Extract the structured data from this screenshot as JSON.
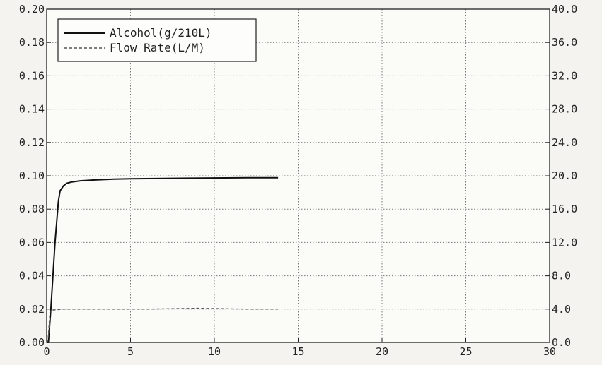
{
  "chart_data": {
    "type": "line",
    "x_ticks": [
      "0",
      "5",
      "10",
      "15",
      "20",
      "25",
      "30"
    ],
    "y_left_ticks": [
      "0.00",
      "0.02",
      "0.04",
      "0.06",
      "0.08",
      "0.10",
      "0.12",
      "0.14",
      "0.16",
      "0.18",
      "0.20"
    ],
    "y_right_ticks": [
      "0.0",
      "4.0",
      "8.0",
      "12.0",
      "16.0",
      "20.0",
      "24.0",
      "28.0",
      "32.0",
      "36.0",
      "40.0"
    ],
    "xlim": [
      0,
      30
    ],
    "ylim_left": [
      0,
      0.2
    ],
    "ylim_right": [
      0,
      40
    ],
    "grid": true,
    "legend_position": "top-left",
    "series": [
      {
        "name": "Alcohol(g/210L)",
        "axis": "left",
        "line_style": "solid",
        "color": "#111111",
        "x": [
          0.0,
          0.1,
          0.25,
          0.5,
          0.7,
          0.8,
          1.0,
          1.2,
          1.5,
          2.0,
          3.0,
          4.0,
          5.0,
          6.0,
          8.0,
          10.0,
          12.0,
          13.8
        ],
        "y": [
          0.0,
          0.0,
          0.02,
          0.06,
          0.085,
          0.091,
          0.094,
          0.0955,
          0.0963,
          0.097,
          0.0976,
          0.098,
          0.0982,
          0.0983,
          0.0985,
          0.0987,
          0.0988,
          0.0988
        ]
      },
      {
        "name": "Flow Rate(L/M)",
        "axis": "right",
        "line_style": "dashed",
        "color": "#555555",
        "x": [
          0.0,
          0.08,
          0.2,
          0.3,
          0.45,
          1.0,
          3.0,
          6.0,
          9.0,
          12.0,
          13.8
        ],
        "y": [
          0.0,
          0.3,
          3.7,
          3.9,
          3.9,
          4.0,
          4.0,
          4.0,
          4.1,
          4.0,
          4.0
        ]
      }
    ]
  }
}
